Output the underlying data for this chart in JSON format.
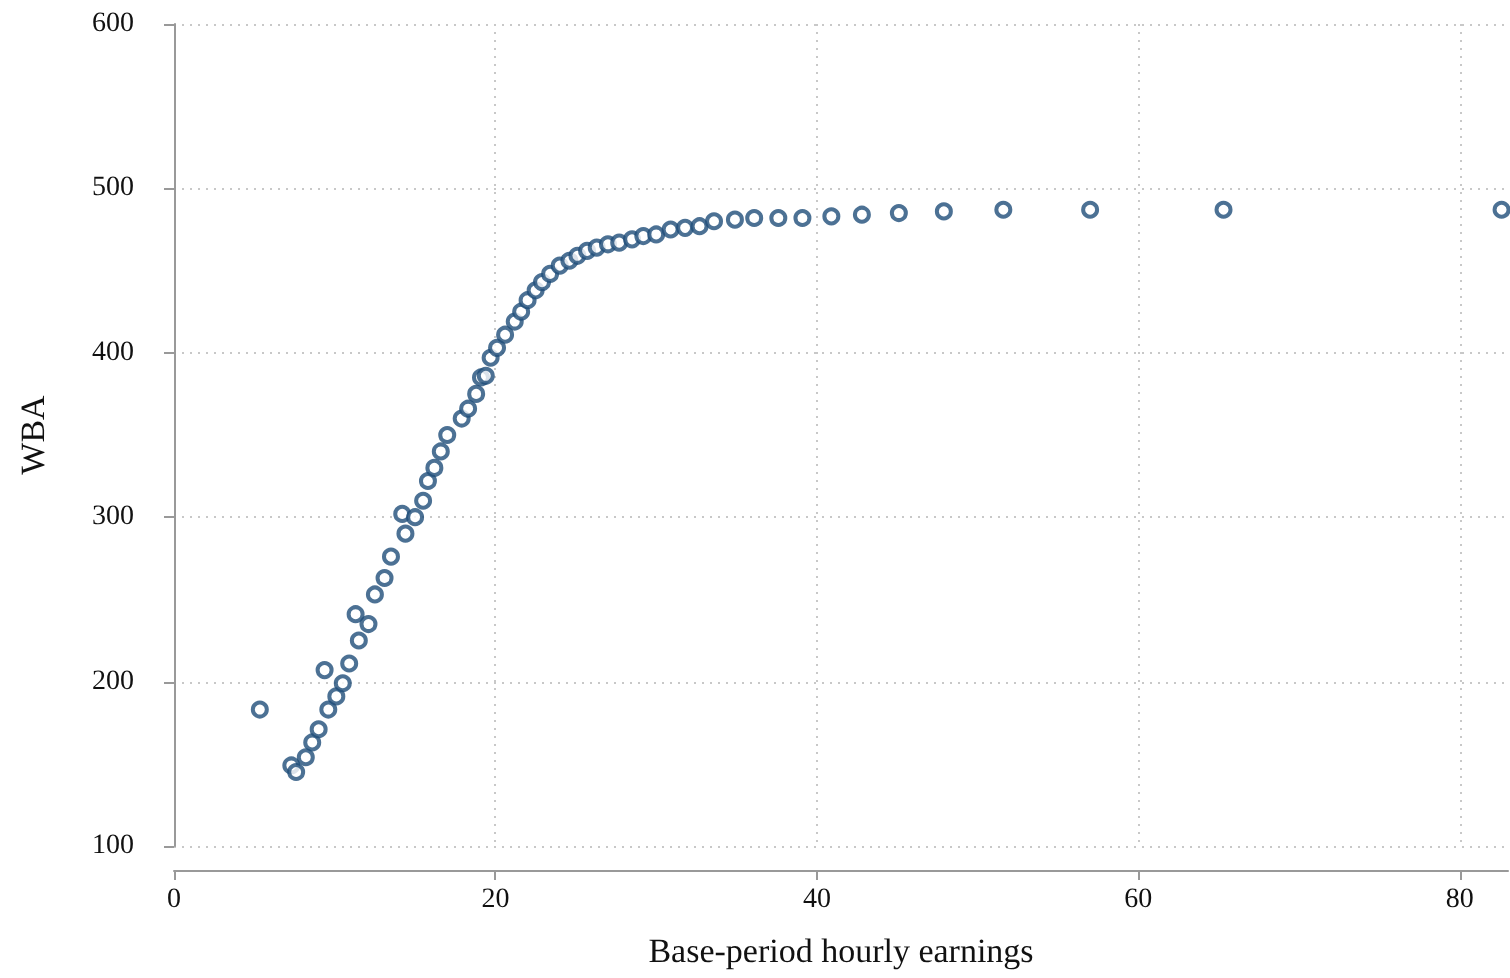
{
  "chart_data": {
    "type": "scatter",
    "xlabel": "Base-period hourly earnings",
    "ylabel": "WBA",
    "x": [
      5.34,
      7.3,
      7.6,
      8.2,
      8.6,
      9.0,
      9.37,
      9.6,
      10.1,
      10.5,
      10.9,
      11.3,
      11.5,
      12.1,
      12.5,
      13.1,
      13.5,
      14.2,
      14.4,
      15.0,
      15.5,
      15.8,
      16.2,
      16.6,
      17.0,
      17.9,
      18.3,
      18.8,
      19.1,
      19.4,
      19.7,
      20.1,
      20.6,
      21.2,
      21.6,
      22.0,
      22.5,
      22.9,
      23.4,
      24.0,
      24.6,
      25.1,
      25.7,
      26.3,
      27.0,
      27.7,
      28.5,
      29.2,
      30.0,
      30.9,
      31.8,
      32.7,
      33.6,
      34.9,
      36.1,
      37.6,
      39.1,
      40.9,
      42.8,
      45.1,
      47.9,
      51.6,
      57.0,
      65.3,
      82.6
    ],
    "series": [
      {
        "color": "#1f4e79",
        "values": [
          183,
          149,
          145,
          154,
          163,
          171,
          207,
          183,
          191,
          199,
          211,
          241,
          225,
          235,
          253,
          263,
          276,
          302,
          290,
          300,
          310,
          322,
          330,
          340,
          350,
          360,
          366,
          375,
          385,
          386,
          397,
          403,
          411,
          419,
          425,
          432,
          438,
          443,
          448,
          453,
          456,
          459,
          462,
          464,
          466,
          467,
          469,
          471,
          472,
          475,
          476,
          477,
          480,
          481,
          482,
          482,
          482,
          483,
          484,
          485,
          486,
          487,
          487,
          487,
          487
        ]
      }
    ],
    "xlim": [
      0,
      83
    ],
    "xticks": [
      0,
      20,
      40,
      60,
      80
    ],
    "ylim": [
      100,
      600
    ],
    "yticks": [
      100,
      200,
      300,
      400,
      500,
      600
    ],
    "grid": true,
    "marker": "circle"
  }
}
